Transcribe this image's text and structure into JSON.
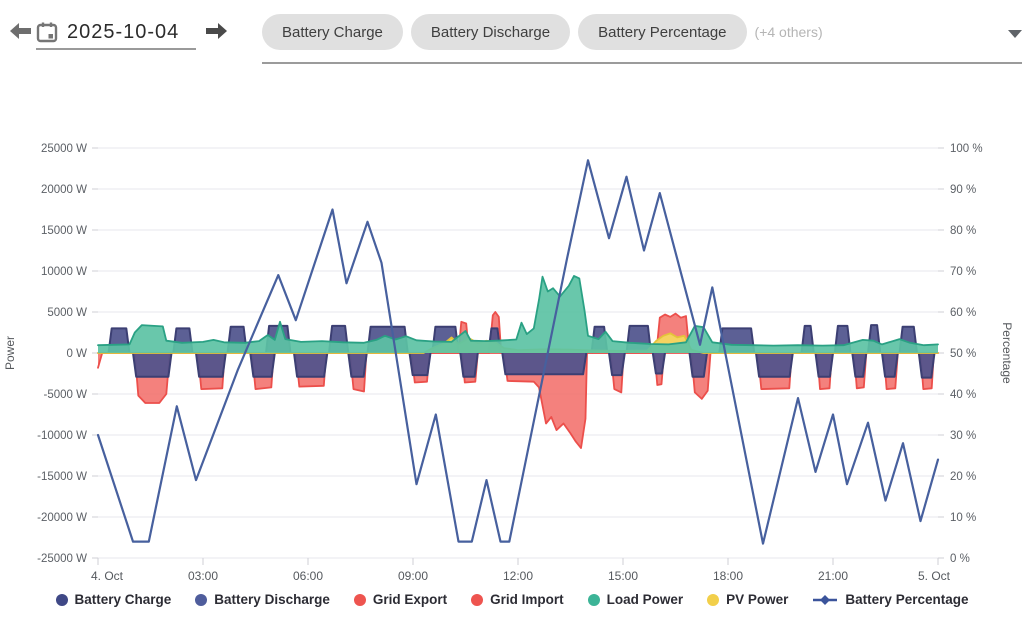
{
  "header": {
    "date": "2025-10-04",
    "prev_day_icon": "arrow-left-icon",
    "next_day_icon": "arrow-right-icon",
    "calendar_icon": "calendar-icon"
  },
  "select": {
    "chips": [
      "Battery Charge",
      "Battery Discharge",
      "Battery Percentage"
    ],
    "others_label": "(+4 others)"
  },
  "chart_data": {
    "type": "area",
    "x_unit": "hours",
    "x_range": [
      0,
      24
    ],
    "grid": true,
    "x_ticks": [
      {
        "h": 0,
        "label": "4. Oct"
      },
      {
        "h": 3,
        "label": "03:00"
      },
      {
        "h": 6,
        "label": "06:00"
      },
      {
        "h": 9,
        "label": "09:00"
      },
      {
        "h": 12,
        "label": "12:00"
      },
      {
        "h": 15,
        "label": "15:00"
      },
      {
        "h": 18,
        "label": "18:00"
      },
      {
        "h": 21,
        "label": "21:00"
      },
      {
        "h": 24,
        "label": "5. Oct"
      }
    ],
    "left_axis": {
      "label": "Power",
      "unit": "W",
      "min": -25000,
      "max": 25000,
      "step": 5000,
      "tick_labels": [
        "25000 W",
        "20000 W",
        "15000 W",
        "10000 W",
        "5000 W",
        "0 W",
        "-5000 W",
        "-10000 W",
        "-15000 W",
        "-20000 W",
        "-25000 W"
      ]
    },
    "right_axis": {
      "label": "Percentage",
      "unit": "%",
      "min": 0,
      "max": 100,
      "step": 10,
      "tick_labels": [
        "100 %",
        "90 %",
        "80 %",
        "70 %",
        "60 %",
        "50 %",
        "40 %",
        "30 %",
        "20 %",
        "10 %",
        "0 %"
      ]
    },
    "series": [
      {
        "name": "Grid Export",
        "render": "area",
        "axis": "power",
        "fill": "#f3706b",
        "stroke": "#ec4f4b",
        "opacity": 0.88,
        "points": [
          [
            0,
            -1800
          ],
          [
            0.12,
            0
          ],
          [
            1.05,
            0
          ],
          [
            1.15,
            -5200
          ],
          [
            1.35,
            -6100
          ],
          [
            1.75,
            -6100
          ],
          [
            1.95,
            -5000
          ],
          [
            2.05,
            0
          ],
          [
            2.85,
            0
          ],
          [
            2.95,
            -4400
          ],
          [
            3.55,
            -4300
          ],
          [
            3.62,
            0
          ],
          [
            4.4,
            0
          ],
          [
            4.5,
            -4400
          ],
          [
            4.95,
            -4200
          ],
          [
            5.02,
            0
          ],
          [
            5.65,
            0
          ],
          [
            5.75,
            -4100
          ],
          [
            6.45,
            -4000
          ],
          [
            6.52,
            0
          ],
          [
            7.2,
            0
          ],
          [
            7.3,
            -4400
          ],
          [
            7.6,
            -4700
          ],
          [
            7.67,
            0
          ],
          [
            8.95,
            0
          ],
          [
            9.05,
            -3600
          ],
          [
            9.4,
            -3500
          ],
          [
            9.47,
            0
          ],
          [
            10.4,
            0
          ],
          [
            10.48,
            -3600
          ],
          [
            10.78,
            -3500
          ],
          [
            10.85,
            0
          ],
          [
            11.6,
            0
          ],
          [
            11.7,
            -3400
          ],
          [
            12.45,
            -3500
          ],
          [
            12.6,
            -4200
          ],
          [
            12.8,
            -8600
          ],
          [
            12.95,
            -7800
          ],
          [
            13.1,
            -9400
          ],
          [
            13.3,
            -8600
          ],
          [
            13.5,
            -9800
          ],
          [
            13.65,
            -10800
          ],
          [
            13.8,
            -11600
          ],
          [
            13.93,
            -8000
          ],
          [
            13.97,
            0
          ],
          [
            14.65,
            0
          ],
          [
            14.75,
            -4400
          ],
          [
            14.95,
            -4800
          ],
          [
            15.02,
            0
          ],
          [
            15.9,
            0
          ],
          [
            15.98,
            -3900
          ],
          [
            16.1,
            -3800
          ],
          [
            16.17,
            0
          ],
          [
            16.95,
            0
          ],
          [
            17.05,
            -4800
          ],
          [
            17.25,
            -5600
          ],
          [
            17.42,
            -4600
          ],
          [
            17.5,
            0
          ],
          [
            18.85,
            0
          ],
          [
            18.95,
            -4400
          ],
          [
            19.75,
            -4300
          ],
          [
            19.82,
            0
          ],
          [
            20.55,
            0
          ],
          [
            20.63,
            -4400
          ],
          [
            20.9,
            -4300
          ],
          [
            20.97,
            0
          ],
          [
            21.6,
            0
          ],
          [
            21.68,
            -4300
          ],
          [
            21.88,
            -4200
          ],
          [
            21.95,
            0
          ],
          [
            22.45,
            0
          ],
          [
            22.53,
            -4400
          ],
          [
            22.78,
            -4300
          ],
          [
            22.85,
            0
          ],
          [
            23.5,
            0
          ],
          [
            23.58,
            -4400
          ],
          [
            23.82,
            -4300
          ],
          [
            23.88,
            0
          ],
          [
            24,
            0
          ]
        ]
      },
      {
        "name": "Grid Import",
        "render": "area",
        "axis": "power",
        "fill": "#f3706b",
        "stroke": "#ec4f4b",
        "opacity": 0.88,
        "points": [
          [
            0,
            0
          ],
          [
            10.3,
            0
          ],
          [
            10.38,
            3800
          ],
          [
            10.52,
            3600
          ],
          [
            10.6,
            0
          ],
          [
            11.18,
            0
          ],
          [
            11.28,
            4600
          ],
          [
            11.35,
            5000
          ],
          [
            11.45,
            4400
          ],
          [
            11.52,
            0
          ],
          [
            15.95,
            0
          ],
          [
            16.05,
            4300
          ],
          [
            16.2,
            4700
          ],
          [
            16.35,
            4400
          ],
          [
            16.5,
            4800
          ],
          [
            16.65,
            4300
          ],
          [
            16.8,
            4500
          ],
          [
            16.9,
            0
          ],
          [
            24,
            0
          ]
        ]
      },
      {
        "name": "Battery Charge",
        "render": "blocks",
        "axis": "power",
        "fill": "#4e528c",
        "stroke": "#3c3f73",
        "opacity": 0.92,
        "blocks": [
          [
            0.3,
            0.9,
            3000
          ],
          [
            2.15,
            2.7,
            3000
          ],
          [
            3.7,
            4.25,
            3200
          ],
          [
            4.8,
            5.5,
            3300
          ],
          [
            6.6,
            7.15,
            3300
          ],
          [
            7.7,
            8.85,
            3200
          ],
          [
            9.55,
            10.3,
            3200
          ],
          [
            11.15,
            11.5,
            3000
          ],
          [
            14.1,
            14.55,
            3200
          ],
          [
            15.1,
            15.8,
            3300
          ],
          [
            17.75,
            18.75,
            3000
          ],
          [
            20.1,
            20.45,
            3300
          ],
          [
            21.05,
            21.5,
            3300
          ],
          [
            22.0,
            22.35,
            3400
          ],
          [
            22.9,
            23.4,
            3200
          ]
        ]
      },
      {
        "name": "Battery Discharge",
        "render": "blocks",
        "axis": "power",
        "fill": "#4e528c",
        "stroke": "#3c3f73",
        "opacity": 0.92,
        "blocks": [
          [
            1.0,
            2.1,
            -2900
          ],
          [
            2.8,
            3.65,
            -2900
          ],
          [
            4.35,
            5.05,
            -2900
          ],
          [
            5.6,
            6.55,
            -2900
          ],
          [
            7.15,
            7.68,
            -2900
          ],
          [
            8.9,
            9.5,
            -2700
          ],
          [
            10.35,
            10.85,
            -2900
          ],
          [
            11.55,
            13.95,
            -2600
          ],
          [
            14.6,
            15.05,
            -2700
          ],
          [
            15.85,
            16.2,
            -2500
          ],
          [
            16.9,
            17.4,
            -2900
          ],
          [
            18.8,
            19.85,
            -2900
          ],
          [
            20.5,
            21.0,
            -2900
          ],
          [
            21.55,
            21.95,
            -2900
          ],
          [
            22.4,
            22.85,
            -2900
          ],
          [
            23.45,
            23.9,
            -3000
          ]
        ]
      },
      {
        "name": "PV Power",
        "render": "area",
        "axis": "power",
        "fill": "#f4d75f",
        "stroke": "#e3c43a",
        "opacity": 0.95,
        "points": [
          [
            0,
            0
          ],
          [
            9.3,
            0
          ],
          [
            9.6,
            700
          ],
          [
            9.9,
            1200
          ],
          [
            10.1,
            1900
          ],
          [
            10.3,
            1100
          ],
          [
            10.6,
            1800
          ],
          [
            10.85,
            1200
          ],
          [
            11.1,
            1500
          ],
          [
            11.35,
            1300
          ],
          [
            11.6,
            600
          ],
          [
            12.0,
            350
          ],
          [
            12.8,
            450
          ],
          [
            13.5,
            400
          ],
          [
            14.2,
            300
          ],
          [
            15.0,
            250
          ],
          [
            15.7,
            300
          ],
          [
            15.95,
            1500
          ],
          [
            16.15,
            2100
          ],
          [
            16.35,
            2400
          ],
          [
            16.55,
            1900
          ],
          [
            16.75,
            2100
          ],
          [
            16.95,
            400
          ],
          [
            17.3,
            0
          ],
          [
            24,
            0
          ]
        ]
      },
      {
        "name": "Load Power",
        "render": "area",
        "axis": "power",
        "fill": "#5cc2a4",
        "stroke": "#2aa184",
        "opacity": 0.92,
        "points": [
          [
            0,
            950
          ],
          [
            0.9,
            1050
          ],
          [
            1.05,
            2500
          ],
          [
            1.25,
            3400
          ],
          [
            1.6,
            3300
          ],
          [
            1.85,
            3250
          ],
          [
            1.95,
            1500
          ],
          [
            2.4,
            1250
          ],
          [
            3.0,
            1350
          ],
          [
            3.3,
            1600
          ],
          [
            3.6,
            1300
          ],
          [
            4.2,
            1250
          ],
          [
            4.6,
            1450
          ],
          [
            4.85,
            2200
          ],
          [
            5.05,
            1600
          ],
          [
            5.2,
            3800
          ],
          [
            5.35,
            1700
          ],
          [
            5.8,
            1350
          ],
          [
            6.4,
            1450
          ],
          [
            7.0,
            1300
          ],
          [
            7.6,
            1250
          ],
          [
            7.95,
            1600
          ],
          [
            8.2,
            2100
          ],
          [
            8.5,
            1650
          ],
          [
            8.8,
            2050
          ],
          [
            9.1,
            1550
          ],
          [
            9.6,
            1400
          ],
          [
            10.1,
            1350
          ],
          [
            10.5,
            2700
          ],
          [
            10.65,
            1500
          ],
          [
            11.1,
            1450
          ],
          [
            11.6,
            1550
          ],
          [
            11.95,
            1650
          ],
          [
            12.1,
            3700
          ],
          [
            12.25,
            2300
          ],
          [
            12.45,
            3000
          ],
          [
            12.6,
            6500
          ],
          [
            12.7,
            9300
          ],
          [
            12.85,
            7500
          ],
          [
            13.0,
            7900
          ],
          [
            13.2,
            6900
          ],
          [
            13.45,
            8200
          ],
          [
            13.6,
            9400
          ],
          [
            13.75,
            9100
          ],
          [
            13.9,
            5200
          ],
          [
            14.0,
            2100
          ],
          [
            14.3,
            1700
          ],
          [
            14.5,
            2600
          ],
          [
            14.7,
            1450
          ],
          [
            15.2,
            1250
          ],
          [
            15.8,
            1100
          ],
          [
            16.3,
            1050
          ],
          [
            16.8,
            1300
          ],
          [
            17.05,
            3300
          ],
          [
            17.3,
            3150
          ],
          [
            17.55,
            1300
          ],
          [
            18.1,
            1000
          ],
          [
            18.7,
            950
          ],
          [
            19.3,
            900
          ],
          [
            20.0,
            950
          ],
          [
            20.7,
            900
          ],
          [
            21.3,
            950
          ],
          [
            21.85,
            1600
          ],
          [
            22.15,
            1500
          ],
          [
            22.4,
            1050
          ],
          [
            22.9,
            1700
          ],
          [
            23.2,
            1250
          ],
          [
            23.6,
            950
          ],
          [
            24,
            1050
          ]
        ]
      },
      {
        "name": "Battery Percentage",
        "render": "line",
        "axis": "pct",
        "stroke": "#47609e",
        "opacity": 1,
        "points": [
          [
            0,
            30
          ],
          [
            1.0,
            4
          ],
          [
            1.45,
            4
          ],
          [
            2.25,
            37
          ],
          [
            2.8,
            19
          ],
          [
            4.0,
            46
          ],
          [
            5.15,
            69
          ],
          [
            5.65,
            58
          ],
          [
            6.7,
            85
          ],
          [
            7.1,
            67
          ],
          [
            7.7,
            82
          ],
          [
            8.1,
            72
          ],
          [
            9.1,
            18
          ],
          [
            9.65,
            35
          ],
          [
            10.3,
            4
          ],
          [
            10.68,
            4
          ],
          [
            11.1,
            19
          ],
          [
            11.5,
            4
          ],
          [
            11.75,
            4
          ],
          [
            12.3,
            27
          ],
          [
            13.4,
            73
          ],
          [
            14.0,
            97
          ],
          [
            14.6,
            78
          ],
          [
            15.1,
            93
          ],
          [
            15.6,
            75
          ],
          [
            16.05,
            89
          ],
          [
            17.2,
            52
          ],
          [
            17.55,
            66
          ],
          [
            19.0,
            3.5
          ],
          [
            20.0,
            39
          ],
          [
            20.5,
            21
          ],
          [
            21.0,
            35
          ],
          [
            21.4,
            18
          ],
          [
            22.0,
            33
          ],
          [
            22.5,
            14
          ],
          [
            23.0,
            28
          ],
          [
            23.5,
            9
          ],
          [
            24,
            24
          ]
        ]
      }
    ]
  },
  "legend": [
    {
      "label": "Battery Charge",
      "color": "#3f4886",
      "marker": "dot"
    },
    {
      "label": "Battery Discharge",
      "color": "#4f5d9c",
      "marker": "dot"
    },
    {
      "label": "Grid Export",
      "color": "#ee544f",
      "marker": "dot"
    },
    {
      "label": "Grid Import",
      "color": "#ee544f",
      "marker": "dot"
    },
    {
      "label": "Load Power",
      "color": "#3cb497",
      "marker": "dot"
    },
    {
      "label": "PV Power",
      "color": "#f2cf4a",
      "marker": "dot"
    },
    {
      "label": "Battery Percentage",
      "color": "#3b549b",
      "marker": "line"
    }
  ]
}
